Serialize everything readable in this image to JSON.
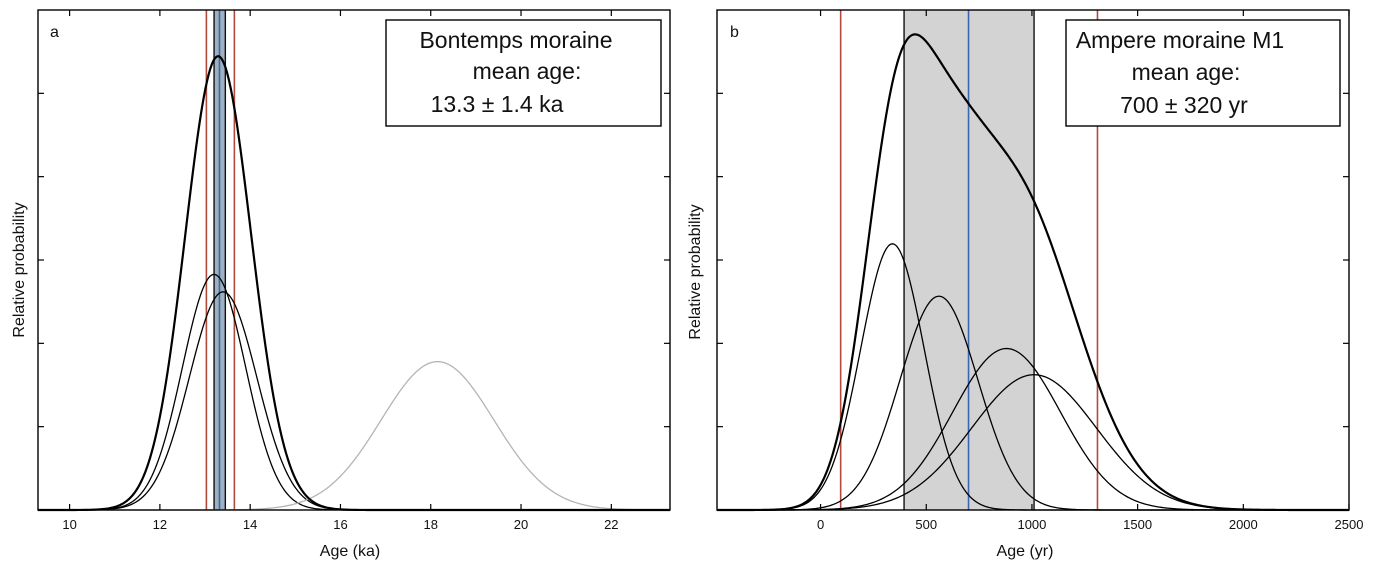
{
  "chart_data": [
    {
      "type": "line",
      "panel_label": "a",
      "xlabel": "Age (ka)",
      "ylabel": "Relative probability",
      "xlim": [
        9.3,
        23.3
      ],
      "ylim": [
        0,
        1
      ],
      "xticks": [
        10,
        12,
        14,
        16,
        18,
        20,
        22
      ],
      "y_tick_count": 6,
      "show_y_tick_labels": false,
      "annotation_lines": [
        "Bontemps moraine",
        "mean age:",
        "13.3 ± 1.4 ka"
      ],
      "series": [
        {
          "kind": "gauss",
          "mu": 13.2,
          "sigma": 0.7,
          "peak": 0.54,
          "color": "#000000",
          "width": 1.3
        },
        {
          "kind": "gauss",
          "mu": 13.4,
          "sigma": 0.75,
          "peak": 0.5,
          "color": "#000000",
          "width": 1.3
        },
        {
          "kind": "gauss",
          "mu": 18.15,
          "sigma": 1.25,
          "peak": 0.34,
          "color": "#b4b4b4",
          "width": 1.3
        },
        {
          "kind": "sum",
          "of": [
            0,
            1
          ],
          "peak": 1.04,
          "color": "#000000",
          "width": 2.2
        }
      ],
      "band": {
        "x0": 13.2,
        "x1": 13.45,
        "fill": "#9fb0c0"
      },
      "vlines": [
        {
          "x": 13.03,
          "color": "#b24a3a",
          "width": 1.6
        },
        {
          "x": 13.65,
          "color": "#b24a3a",
          "width": 1.6
        },
        {
          "x": 13.2,
          "color": "#111111",
          "width": 1.4
        },
        {
          "x": 13.45,
          "color": "#111111",
          "width": 1.4
        },
        {
          "x": 13.32,
          "color": "#3a66b0",
          "width": 1.6
        }
      ]
    },
    {
      "type": "line",
      "panel_label": "b",
      "xlabel": "Age (yr)",
      "ylabel": "Relative probability",
      "xlim": [
        -490,
        2500
      ],
      "ylim": [
        0,
        1
      ],
      "xticks": [
        0,
        500,
        1000,
        1500,
        2000,
        2500
      ],
      "y_tick_count": 6,
      "show_y_tick_labels": false,
      "annotation_lines": [
        "Ampere moraine M1",
        "mean age:",
        "700 ± 320 yr"
      ],
      "series": [
        {
          "kind": "gauss",
          "mu": 340,
          "sigma": 150,
          "peak": 0.61,
          "color": "#000000",
          "width": 1.3
        },
        {
          "kind": "gauss",
          "mu": 560,
          "sigma": 185,
          "peak": 0.49,
          "color": "#000000",
          "width": 1.3
        },
        {
          "kind": "gauss",
          "mu": 880,
          "sigma": 255,
          "peak": 0.37,
          "color": "#000000",
          "width": 1.3
        },
        {
          "kind": "gauss",
          "mu": 1010,
          "sigma": 295,
          "peak": 0.31,
          "color": "#000000",
          "width": 1.3
        },
        {
          "kind": "sum",
          "of": [
            0,
            1,
            2,
            3
          ],
          "peak": 1.09,
          "color": "#000000",
          "width": 2.2
        }
      ],
      "band": {
        "x0": 395,
        "x1": 1010,
        "fill": "#d3d3d3"
      },
      "vlines": [
        {
          "x": 95,
          "color": "#b24a3a",
          "width": 1.6
        },
        {
          "x": 1310,
          "color": "#b24a3a",
          "width": 1.6
        },
        {
          "x": 395,
          "color": "#111111",
          "width": 1.4
        },
        {
          "x": 1010,
          "color": "#111111",
          "width": 1.4
        },
        {
          "x": 700,
          "color": "#3a66b0",
          "width": 1.6
        }
      ]
    }
  ]
}
